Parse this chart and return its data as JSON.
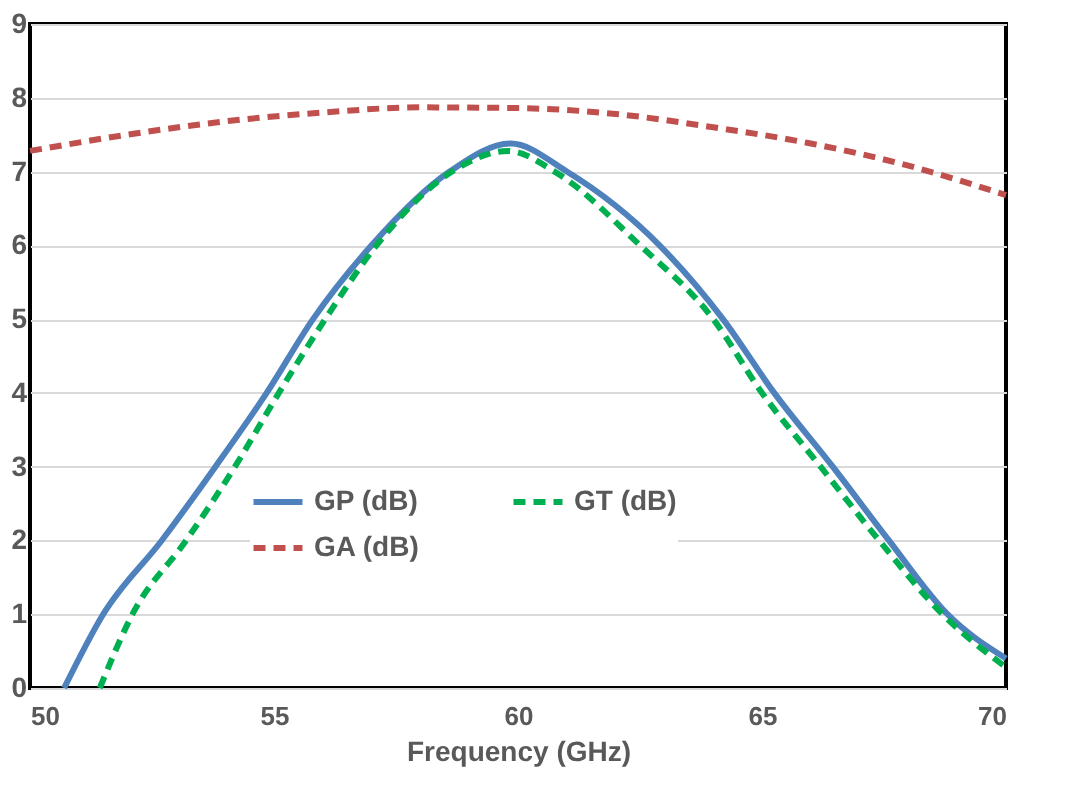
{
  "chart_data": {
    "type": "line",
    "xlabel": "Frequency (GHz)",
    "xlim": [
      50,
      70
    ],
    "xticks": [
      50,
      55,
      60,
      65,
      70
    ],
    "ylim": [
      0,
      9
    ],
    "yticks": [
      0,
      1,
      2,
      3,
      4,
      5,
      6,
      7,
      8,
      9
    ],
    "grid": "y",
    "legend": "bottom",
    "marker": "none",
    "series": [
      {
        "name": "GP (dB)",
        "color": "#4f81bd",
        "line_style": "solid",
        "x": [
          50.7,
          51.5,
          52.7,
          53.8,
          54.85,
          55.8,
          57.0,
          58.6,
          59.85,
          61.0,
          62.9,
          64.2,
          65.25,
          66.45,
          67.6,
          68.8,
          70
        ],
        "values": [
          0,
          1,
          2,
          3,
          4,
          5,
          6,
          7,
          7.38,
          7,
          6,
          5,
          4,
          3,
          2,
          1,
          0.4
        ]
      },
      {
        "name": "GA (dB)",
        "color": "#c0504d",
        "line_style": "dashed",
        "x": [
          50,
          52,
          54,
          56,
          58,
          60,
          62,
          64,
          66,
          68,
          70
        ],
        "values": [
          7.28,
          7.5,
          7.68,
          7.8,
          7.87,
          7.86,
          7.78,
          7.6,
          7.38,
          7.08,
          6.68
        ]
      },
      {
        "name": "GT (dB)",
        "color": "#00b050",
        "line_style": "dashed",
        "x": [
          51.43,
          52.1,
          53.2,
          54.2,
          55.1,
          56.05,
          57.1,
          58.65,
          59.8,
          60.75,
          62.5,
          64.0,
          65.0,
          66.2,
          67.4,
          68.7,
          70
        ],
        "values": [
          0,
          1,
          2,
          3,
          4,
          5,
          6,
          7,
          7.28,
          7,
          6,
          5,
          4,
          3,
          2,
          1,
          0.28
        ]
      }
    ]
  }
}
